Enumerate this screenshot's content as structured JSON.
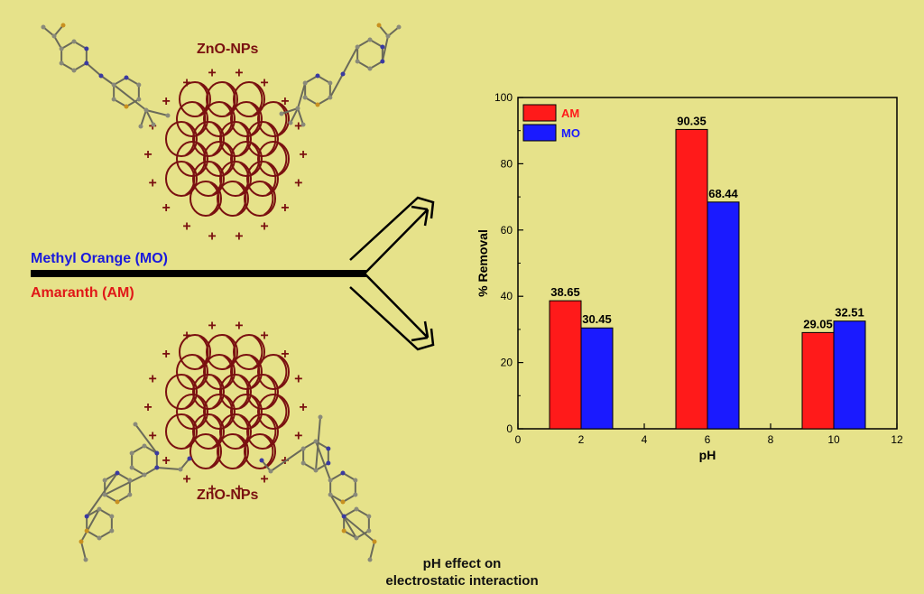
{
  "illustration": {
    "nanoparticle_label_top": "ZnO-NPs",
    "nanoparticle_label_bottom": "ZnO-NPs",
    "charge_symbol": "+",
    "dye_mo_label": "Methyl Orange (MO)",
    "dye_am_label": "Amaranth (AM)",
    "colors": {
      "particle": "#7a1010",
      "mo": "#1a1adc",
      "am": "#e01818",
      "background": "#e6e28a"
    }
  },
  "caption": {
    "line1": "pH effect on",
    "line2": "electrostatic interaction"
  },
  "chart_data": {
    "type": "bar",
    "xlabel": "pH",
    "ylabel": "% Removal",
    "xlim": [
      0,
      12
    ],
    "ylim": [
      0,
      100
    ],
    "xticks": [
      0,
      2,
      4,
      6,
      8,
      10,
      12
    ],
    "yticks": [
      0,
      20,
      40,
      60,
      80,
      100
    ],
    "legend_position": "top-left",
    "grid": false,
    "series": [
      {
        "name": "AM",
        "color": "#ff1a1a",
        "x": [
          2,
          6,
          10
        ],
        "values": [
          38.65,
          90.35,
          29.05
        ],
        "labels": [
          "38.65",
          "90.35",
          "29.05"
        ]
      },
      {
        "name": "MO",
        "color": "#1a1aff",
        "x": [
          2,
          6,
          10
        ],
        "values": [
          30.45,
          68.44,
          32.51
        ],
        "labels": [
          "30.45",
          "68.44",
          "32.51"
        ]
      }
    ]
  }
}
